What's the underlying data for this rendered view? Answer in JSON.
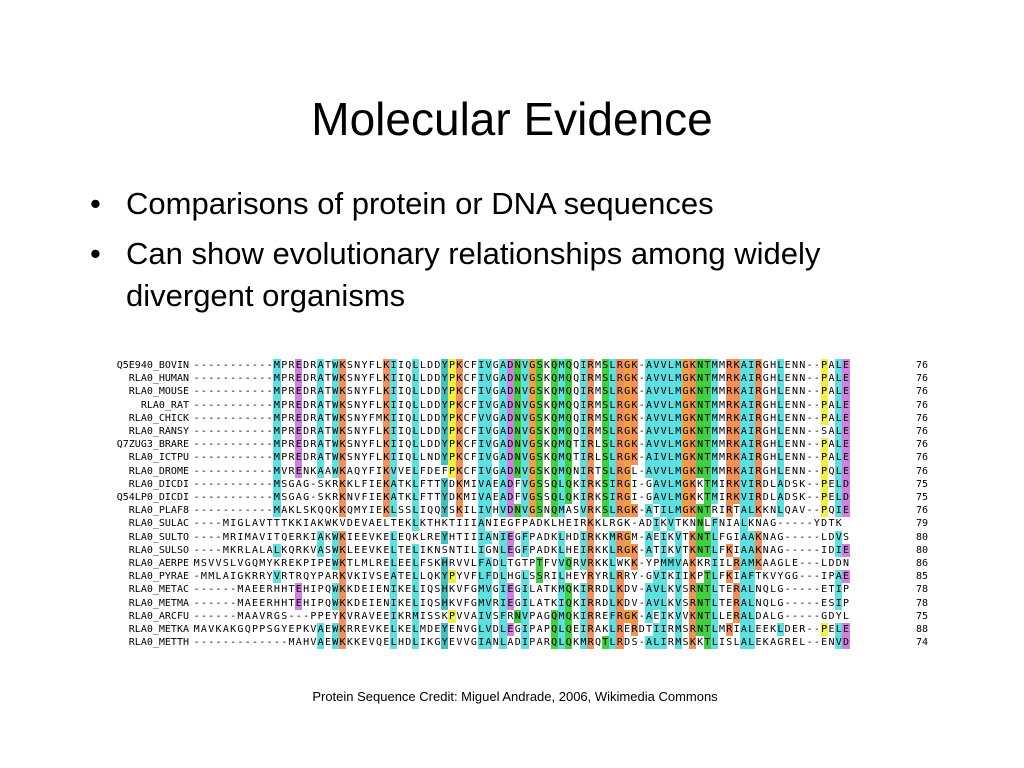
{
  "title": "Molecular Evidence",
  "bullets": [
    "Comparisons of protein or DNA sequences",
    "Can show evolutionary relationships among widely divergent organisms"
  ],
  "alignment": {
    "rows": [
      {
        "name": "Q5E940_BOVIN",
        "sequence": "-----------MPREDRATWKSNYFLKIIQLLDDYPKCFIVGADNVGSKQMQQIRMSLRGK-AVVLMGKNTMMRKAIRGHLENN--PALE",
        "length": "76"
      },
      {
        "name": "RLA0_HUMAN",
        "sequence": "-----------MPREDRATWKSNYFLKIIQLLDDYPKCFIVGADNVGSKQMQQIRMSLRGK-AVVLMGKNTMMRKAIRGHLENN--PALE",
        "length": "76"
      },
      {
        "name": "RLA0_MOUSE",
        "sequence": "-----------MPREDRATWKSNYFLKIIQLLDDYPKCFIVGADNVGSKQMQQIRMSLRGK-AVVLMGKNTMMRKAIRGHLENN--PALE",
        "length": "76"
      },
      {
        "name": "RLA0_RAT",
        "sequence": "-----------MPREDRATWKSNYFLKIIQLLDDYPKCFIVGADNVGSKQMQQIRMSLRGK-AVVLMGKNTMMRKAIRGHLENN--PALE",
        "length": "76"
      },
      {
        "name": "RLA0_CHICK",
        "sequence": "-----------MPREDRATWKSNYFMKIIQLLDDYPKCFVVGADNVGSKQMQQIRMSLRGK-AVVLMGKNTMMRKAIRGHLENN--PALE",
        "length": "76"
      },
      {
        "name": "RLA0_RANSY",
        "sequence": "-----------MPREDRATWKSNYFLKIIQLLDDYPKCFIVGADNVGSKQMQQIRMSLRGK-AVVLMGKNTMMRKAIRGHLENN--SALE",
        "length": "76"
      },
      {
        "name": "Q7ZUG3_BRARE",
        "sequence": "-----------MPREDRATWKSNYFLKIIQLLDDYPKCFIVGADNVGSKQMQTIRLSLRGK-AVVLMGKNTMMRKAIRGHLENN--PALE",
        "length": "76"
      },
      {
        "name": "RLA0_ICTPU",
        "sequence": "-----------MPREDRATWKSNYFLKIIQLLNDYPKCFIVGADNVGSKQMQTIRLSLRGK-AIVLMGKNTMMRKAIRGHLENN--PALE",
        "length": "76"
      },
      {
        "name": "RLA0_DROME",
        "sequence": "-----------MVRENKAAWKAQYFIKVVELFDEFPKCFIVGADNVGSKQMQNIRTSLRGL-AVVLMGKNTMMRKAIRGHLENN--PQLE",
        "length": "76"
      },
      {
        "name": "RLA0_DICDI",
        "sequence": "-----------MSGAG-SKRKKLFIEKATKLFTTYDKMIVAEADFVGSSQLQKIRKSIRGI-GAVLMGKKTMIRKVIRDLADSK--PELD",
        "length": "75"
      },
      {
        "name": "Q54LP0_DICDI",
        "sequence": "-----------MSGAG-SKRKNVFIEKATKLFTTYDKMIVAEADFVGSSQLQKIRKSIRGI-GAVLMGKKTMIRKVIRDLADSK--PELD",
        "length": "75"
      },
      {
        "name": "RLA0_PLAF8",
        "sequence": "-----------MAKLSKQQKKQMYIEKLSSLIQQYSKILIVHVDNVGSNQMASVRKSLRGK-ATILMGKNTRIRTALKKNLQAV--PQIE",
        "length": "76"
      },
      {
        "name": "RLA0_SULAC",
        "sequence": "----MIGLAVTTTKKIAKWKVDEVAELTEKLKTHKTIIIANIEGFPADKLHEIRKKLRGK-ADIKVTKNNLFNIALKNAG-----YDTK",
        "length": "79"
      },
      {
        "name": "RLA0_SULTO",
        "sequence": "----MRIMAVITQERKIAKWKIEEVKELEQKLREYHTIIIANIEGFPADKLHDIRKKMRGM-AEIKVTKNTLFGIAAKNAG-----LDVS",
        "length": "80"
      },
      {
        "name": "RLA0_SULSO",
        "sequence": "----MKRLALALKQRKVASWKLEEVKELTELIKNSNTILIGNLEGFPADKLHEIRKKLRGK-ATIKVTKNTLFKIAAKNAG-----IDIE",
        "length": "80"
      },
      {
        "name": "RLA0_AERPE",
        "sequence": "MSVVSLVGQMYKREKPIPEWKTLMLRELEELFSKHRVVLFADLTGTPTFVVQRVRKKLWKK-YPMMVAKKRIILRAMKAAGLE---LDDN",
        "length": "86"
      },
      {
        "name": "RLA0_PYRAE",
        "sequence": "-MMLAIGKRRYVRTRQYPARKVKIVSEATELLQKYPYVFLFDLHGLSSRILHEYRYRLRRY-GVIKIIKPTLFKIAFTKVYGG---IPAE",
        "length": "85"
      },
      {
        "name": "RLA0_METAC",
        "sequence": "------MAEERHHTEHIPQWKKDEIENIKELIQSHKVFGMVGIEGILATKMQKIRRDLKDV-AVLKVSRNTLTERALNQLG-----ETIP",
        "length": "78"
      },
      {
        "name": "RLA0_METMA",
        "sequence": "------MAEERHHTEHIPQWKKDEIENIKELIQSHKVFGMVRIEGILATKIQKIRRDLKDV-AVLKVSRNTLTERALNQLG-----ESIP",
        "length": "78"
      },
      {
        "name": "RLA0_ARCFU",
        "sequence": "------MAAVRGS---PPEYKVRAVEEIKRMISSKPVVAIVSFRNVPAGQMQKIRREFRGK-AEIKVVKNTLLERALDALG-----GDYL",
        "length": "75"
      },
      {
        "name": "RLA0_METKA",
        "sequence": "MAVKAKGQPPSGYEPKVAEWKRREVKELKELMDEYENVGLVDLEGIPAPQLQEIRAKLRERDTIIRMSRNTLMRIALEEKLDER--PELE",
        "length": "88"
      },
      {
        "name": "RLA0_METTH",
        "sequence": "-------------MAHVAEWKKKEVQELHDLIKGYEVVGIANLADIPARQLQKMRQTLRDS-ALIRMSKKTLISLALEKAGREL--ENVD",
        "length": "74"
      }
    ]
  },
  "caption": "Protein Sequence Credit: Miguel Andrade, 2006, Wikimedia Commons"
}
